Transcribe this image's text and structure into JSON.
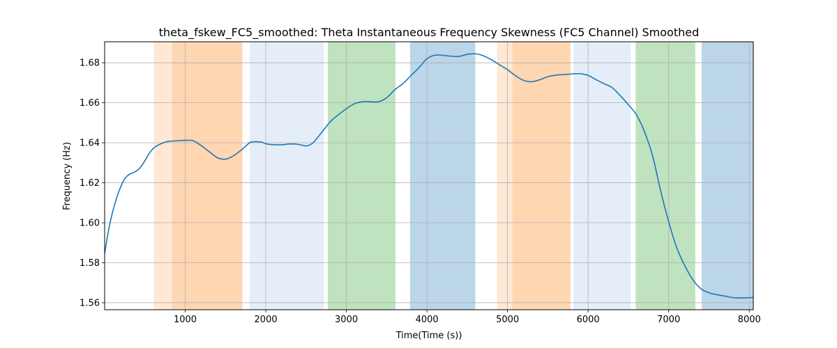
{
  "chart_data": {
    "type": "line",
    "title": "theta_fskew_FC5_smoothed: Theta Instantaneous Frequency Skewness (FC5 Channel) Smoothed",
    "xlabel": "Time(Time (s))",
    "ylabel": "Frequency (Hz)",
    "xlim": [
      0,
      8050
    ],
    "ylim": [
      1.5565,
      1.6905
    ],
    "xticks": [
      1000,
      2000,
      3000,
      4000,
      5000,
      6000,
      7000,
      8000
    ],
    "yticks": [
      1.56,
      1.58,
      1.6,
      1.62,
      1.64,
      1.66,
      1.68
    ],
    "grid": true,
    "line_color": "#1f77b4",
    "bands": [
      {
        "x0": 610,
        "x1": 840,
        "color": "#ff7f0e",
        "opacity": 0.18
      },
      {
        "x0": 840,
        "x1": 1710,
        "color": "#ff7f0e",
        "opacity": 0.32
      },
      {
        "x0": 1800,
        "x1": 2720,
        "color": "#aec7e8",
        "opacity": 0.32
      },
      {
        "x0": 2770,
        "x1": 3610,
        "color": "#2ca02c",
        "opacity": 0.3
      },
      {
        "x0": 3790,
        "x1": 4600,
        "color": "#1f77b4",
        "opacity": 0.3
      },
      {
        "x0": 4870,
        "x1": 5060,
        "color": "#ff7f0e",
        "opacity": 0.18
      },
      {
        "x0": 5060,
        "x1": 5780,
        "color": "#ff7f0e",
        "opacity": 0.32
      },
      {
        "x0": 5820,
        "x1": 6530,
        "color": "#aec7e8",
        "opacity": 0.32
      },
      {
        "x0": 6590,
        "x1": 7330,
        "color": "#2ca02c",
        "opacity": 0.3
      },
      {
        "x0": 7410,
        "x1": 8050,
        "color": "#1f77b4",
        "opacity": 0.3
      }
    ],
    "x": [
      0,
      50,
      100,
      150,
      200,
      250,
      300,
      350,
      400,
      450,
      500,
      550,
      600,
      650,
      700,
      750,
      800,
      900,
      1000,
      1100,
      1200,
      1300,
      1400,
      1500,
      1600,
      1700,
      1800,
      1850,
      1900,
      1950,
      2000,
      2100,
      2200,
      2300,
      2400,
      2500,
      2550,
      2600,
      2700,
      2800,
      2900,
      3000,
      3100,
      3200,
      3300,
      3400,
      3500,
      3600,
      3700,
      3800,
      3900,
      4000,
      4100,
      4200,
      4300,
      4400,
      4500,
      4600,
      4700,
      4800,
      4900,
      5000,
      5100,
      5200,
      5300,
      5400,
      5500,
      5600,
      5700,
      5800,
      5900,
      6000,
      6100,
      6200,
      6300,
      6400,
      6500,
      6600,
      6700,
      6800,
      6900,
      7000,
      7100,
      7200,
      7300,
      7400,
      7500,
      7600,
      7700,
      7800,
      7900,
      8000,
      8050
    ],
    "y": [
      1.5845,
      1.5965,
      1.6055,
      1.6125,
      1.618,
      1.622,
      1.624,
      1.625,
      1.626,
      1.628,
      1.631,
      1.6345,
      1.637,
      1.6385,
      1.6395,
      1.6403,
      1.6407,
      1.641,
      1.6412,
      1.641,
      1.6385,
      1.6355,
      1.6325,
      1.6318,
      1.6335,
      1.6365,
      1.64,
      1.6405,
      1.6405,
      1.6403,
      1.6395,
      1.639,
      1.639,
      1.6394,
      1.6392,
      1.6384,
      1.639,
      1.6405,
      1.6455,
      1.6505,
      1.654,
      1.657,
      1.6595,
      1.6605,
      1.6605,
      1.6605,
      1.6625,
      1.6665,
      1.6695,
      1.6735,
      1.6775,
      1.682,
      1.6838,
      1.6837,
      1.6833,
      1.6832,
      1.6842,
      1.6845,
      1.6835,
      1.6815,
      1.679,
      1.6765,
      1.6735,
      1.6712,
      1.6705,
      1.6715,
      1.673,
      1.6738,
      1.6741,
      1.6744,
      1.6745,
      1.6737,
      1.6715,
      1.6695,
      1.6675,
      1.6635,
      1.659,
      1.654,
      1.6455,
      1.6335,
      1.616,
      1.6005,
      1.5875,
      1.5785,
      1.5715,
      1.567,
      1.565,
      1.564,
      1.5633,
      1.5625,
      1.5624,
      1.5625,
      1.5626
    ]
  }
}
